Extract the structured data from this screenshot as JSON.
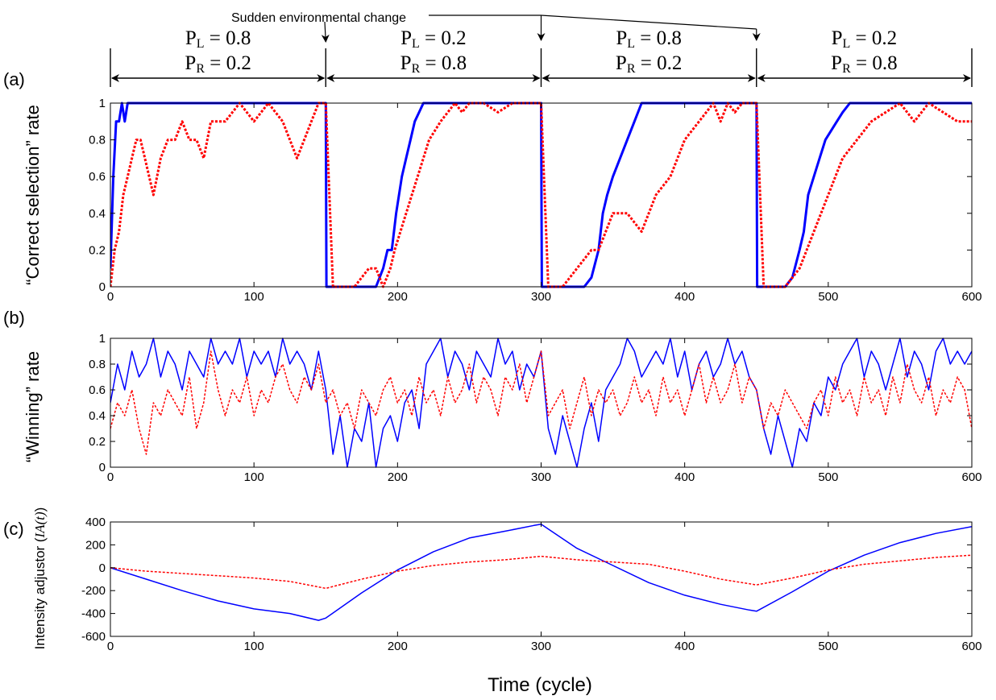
{
  "annotation": {
    "text": "Sudden environmental change"
  },
  "periods": [
    {
      "line1_main": "P",
      "line1_sub": "L",
      "line1_val": " = 0.8",
      "line2_main": "P",
      "line2_sub": "R",
      "line2_val": " = 0.2",
      "start": 0,
      "end": 150
    },
    {
      "line1_main": "P",
      "line1_sub": "L",
      "line1_val": " = 0.2",
      "line2_main": "P",
      "line2_sub": "R",
      "line2_val": " = 0.8",
      "start": 150,
      "end": 300
    },
    {
      "line1_main": "P",
      "line1_sub": "L",
      "line1_val": " = 0.8",
      "line2_main": "P",
      "line2_sub": "R",
      "line2_val": " = 0.2",
      "start": 300,
      "end": 450
    },
    {
      "line1_main": "P",
      "line1_sub": "L",
      "line1_val": " = 0.2",
      "line2_main": "P",
      "line2_sub": "R",
      "line2_val": " = 0.8",
      "start": 450,
      "end": 600
    }
  ],
  "colors": {
    "blue": "#0000ff",
    "red": "#ff0000",
    "axis": "#000000"
  },
  "chart_data": [
    {
      "type": "line",
      "panel_label": "(a)",
      "ylabel": "“Correct selection” rate",
      "xlim": [
        0,
        600
      ],
      "ylim": [
        0,
        1
      ],
      "xticks": [
        0,
        100,
        200,
        300,
        400,
        500,
        600
      ],
      "yticks": [
        0,
        0.2,
        0.4,
        0.6,
        0.8,
        1
      ],
      "ytick_labels": [
        "0",
        "0.2",
        "0.4",
        "0.6",
        "0.8",
        "1"
      ],
      "series": [
        {
          "color": "blue",
          "style": "solid",
          "width": 3,
          "x": [
            0,
            2,
            4,
            6,
            8,
            10,
            12,
            14,
            16,
            18,
            20,
            150,
            150.5,
            185,
            190,
            193,
            196,
            199,
            203,
            206,
            209,
            212,
            215,
            218,
            222,
            226,
            230,
            300,
            300.5,
            330,
            335,
            340,
            343,
            346,
            350,
            355,
            360,
            365,
            370,
            375,
            380,
            450,
            450.5,
            470,
            475,
            480,
            483,
            486,
            490,
            494,
            498,
            502,
            506,
            510,
            515,
            520,
            600
          ],
          "y": [
            0.1,
            0.6,
            0.9,
            0.9,
            1,
            0.9,
            1,
            1,
            1,
            1,
            1,
            1,
            0,
            0,
            0.1,
            0.2,
            0.2,
            0.4,
            0.6,
            0.7,
            0.8,
            0.9,
            0.95,
            1,
            1,
            1,
            1,
            1,
            0,
            0,
            0.05,
            0.2,
            0.4,
            0.5,
            0.6,
            0.7,
            0.8,
            0.9,
            1,
            1,
            1,
            1,
            0,
            0,
            0.05,
            0.2,
            0.3,
            0.5,
            0.6,
            0.7,
            0.8,
            0.85,
            0.9,
            0.95,
            1,
            1,
            1
          ]
        },
        {
          "color": "red",
          "style": "dotted",
          "width": 3,
          "x": [
            0,
            3,
            6,
            9,
            12,
            15,
            18,
            21,
            24,
            27,
            30,
            35,
            40,
            45,
            50,
            55,
            60,
            65,
            70,
            80,
            90,
            100,
            110,
            120,
            125,
            130,
            135,
            140,
            145,
            150,
            155,
            170,
            180,
            185,
            190,
            195,
            198,
            202,
            206,
            210,
            214,
            218,
            222,
            226,
            230,
            235,
            240,
            245,
            250,
            260,
            270,
            280,
            290,
            300,
            305,
            315,
            325,
            335,
            340,
            345,
            350,
            360,
            370,
            380,
            390,
            395,
            400,
            405,
            410,
            415,
            420,
            425,
            430,
            435,
            440,
            450,
            455,
            470,
            480,
            485,
            490,
            495,
            500,
            505,
            510,
            515,
            520,
            525,
            530,
            540,
            550,
            560,
            570,
            580,
            590,
            600
          ],
          "y": [
            0,
            0.2,
            0.3,
            0.5,
            0.6,
            0.7,
            0.8,
            0.8,
            0.7,
            0.6,
            0.5,
            0.7,
            0.8,
            0.8,
            0.9,
            0.8,
            0.8,
            0.7,
            0.9,
            0.9,
            1,
            0.9,
            1,
            0.9,
            0.8,
            0.7,
            0.8,
            0.9,
            1,
            1,
            0,
            0,
            0.1,
            0.1,
            0,
            0.1,
            0.2,
            0.3,
            0.4,
            0.5,
            0.6,
            0.7,
            0.8,
            0.85,
            0.9,
            0.95,
            1,
            0.95,
            1,
            1,
            0.95,
            1,
            1,
            1,
            0,
            0,
            0.1,
            0.2,
            0.2,
            0.3,
            0.4,
            0.4,
            0.3,
            0.5,
            0.6,
            0.7,
            0.8,
            0.85,
            0.9,
            0.95,
            1,
            0.9,
            1,
            0.95,
            1,
            1,
            0,
            0,
            0.1,
            0.2,
            0.3,
            0.4,
            0.5,
            0.6,
            0.7,
            0.75,
            0.8,
            0.85,
            0.9,
            0.95,
            1,
            0.9,
            1,
            0.95,
            0.9,
            0.9
          ]
        }
      ]
    },
    {
      "type": "line",
      "panel_label": "(b)",
      "ylabel": "“Winning” rate",
      "xlim": [
        0,
        600
      ],
      "ylim": [
        0,
        1
      ],
      "xticks": [
        0,
        100,
        200,
        300,
        400,
        500,
        600
      ],
      "yticks": [
        0,
        0.2,
        0.4,
        0.6,
        0.8,
        1
      ],
      "ytick_labels": [
        "0",
        "0.2",
        "0.4",
        "0.6",
        "0.8",
        "1"
      ],
      "series": [
        {
          "color": "blue",
          "style": "solid",
          "width": 1.5,
          "x": [
            0,
            5,
            10,
            15,
            20,
            25,
            30,
            35,
            40,
            45,
            50,
            55,
            60,
            65,
            70,
            75,
            80,
            85,
            90,
            95,
            100,
            105,
            110,
            115,
            120,
            125,
            130,
            135,
            140,
            145,
            150,
            155,
            160,
            165,
            170,
            175,
            180,
            185,
            190,
            195,
            200,
            205,
            210,
            215,
            220,
            225,
            230,
            235,
            240,
            245,
            250,
            255,
            260,
            265,
            270,
            275,
            280,
            285,
            290,
            295,
            300,
            305,
            310,
            315,
            320,
            325,
            330,
            335,
            340,
            345,
            350,
            355,
            360,
            365,
            370,
            375,
            380,
            385,
            390,
            395,
            400,
            405,
            410,
            415,
            420,
            425,
            430,
            435,
            440,
            445,
            450,
            455,
            460,
            465,
            470,
            475,
            480,
            485,
            490,
            495,
            500,
            505,
            510,
            515,
            520,
            525,
            530,
            535,
            540,
            545,
            550,
            555,
            560,
            565,
            570,
            575,
            580,
            585,
            590,
            595,
            600
          ],
          "y": [
            0.5,
            0.8,
            0.6,
            0.9,
            0.7,
            0.8,
            1,
            0.7,
            0.9,
            0.8,
            0.6,
            0.9,
            0.8,
            0.7,
            1,
            0.8,
            0.9,
            0.8,
            1,
            0.7,
            0.9,
            0.8,
            0.9,
            0.7,
            1,
            0.8,
            0.9,
            0.8,
            0.6,
            0.9,
            0.6,
            0.1,
            0.4,
            0,
            0.3,
            0.2,
            0.5,
            0,
            0.3,
            0.4,
            0.2,
            0.5,
            0.6,
            0.3,
            0.8,
            0.9,
            1,
            0.7,
            0.9,
            0.8,
            0.6,
            0.9,
            0.8,
            0.7,
            1,
            0.8,
            0.9,
            0.6,
            0.8,
            0.7,
            0.9,
            0.3,
            0.1,
            0.4,
            0.2,
            0,
            0.3,
            0.5,
            0.2,
            0.6,
            0.7,
            0.8,
            1,
            0.9,
            0.7,
            0.8,
            0.9,
            0.8,
            1,
            0.7,
            0.9,
            0.6,
            0.8,
            0.9,
            0.7,
            0.8,
            1,
            0.8,
            0.9,
            0.7,
            0.6,
            0.3,
            0.1,
            0.4,
            0.2,
            0,
            0.3,
            0.2,
            0.5,
            0.4,
            0.7,
            0.6,
            0.8,
            0.9,
            1,
            0.7,
            0.9,
            0.8,
            0.6,
            0.8,
            1,
            0.7,
            0.9,
            0.8,
            0.6,
            0.9,
            1,
            0.8,
            0.9,
            0.8,
            0.9
          ]
        },
        {
          "color": "red",
          "style": "dotted",
          "width": 1.5,
          "x": [
            0,
            5,
            10,
            15,
            20,
            25,
            30,
            35,
            40,
            45,
            50,
            55,
            60,
            65,
            70,
            75,
            80,
            85,
            90,
            95,
            100,
            105,
            110,
            115,
            120,
            125,
            130,
            135,
            140,
            145,
            150,
            155,
            160,
            165,
            170,
            175,
            180,
            185,
            190,
            195,
            200,
            205,
            210,
            215,
            220,
            225,
            230,
            235,
            240,
            245,
            250,
            255,
            260,
            265,
            270,
            275,
            280,
            285,
            290,
            295,
            300,
            305,
            310,
            315,
            320,
            325,
            330,
            335,
            340,
            345,
            350,
            355,
            360,
            365,
            370,
            375,
            380,
            385,
            390,
            395,
            400,
            405,
            410,
            415,
            420,
            425,
            430,
            435,
            440,
            445,
            450,
            455,
            460,
            465,
            470,
            475,
            480,
            485,
            490,
            495,
            500,
            505,
            510,
            515,
            520,
            525,
            530,
            535,
            540,
            545,
            550,
            555,
            560,
            565,
            570,
            575,
            580,
            585,
            590,
            595,
            600
          ],
          "y": [
            0.3,
            0.5,
            0.4,
            0.6,
            0.3,
            0.1,
            0.5,
            0.4,
            0.6,
            0.5,
            0.4,
            0.7,
            0.3,
            0.5,
            0.9,
            0.6,
            0.4,
            0.6,
            0.5,
            0.7,
            0.4,
            0.6,
            0.5,
            0.7,
            0.8,
            0.6,
            0.5,
            0.7,
            0.6,
            0.8,
            0.5,
            0.6,
            0.4,
            0.5,
            0.3,
            0.6,
            0.5,
            0.4,
            0.6,
            0.7,
            0.5,
            0.6,
            0.4,
            0.7,
            0.5,
            0.6,
            0.4,
            0.7,
            0.5,
            0.6,
            0.8,
            0.5,
            0.7,
            0.6,
            0.4,
            0.7,
            0.6,
            0.8,
            0.5,
            0.7,
            0.9,
            0.4,
            0.5,
            0.6,
            0.3,
            0.5,
            0.7,
            0.4,
            0.6,
            0.5,
            0.6,
            0.4,
            0.5,
            0.7,
            0.5,
            0.6,
            0.4,
            0.7,
            0.5,
            0.6,
            0.4,
            0.6,
            0.8,
            0.5,
            0.7,
            0.5,
            0.6,
            0.8,
            0.5,
            0.7,
            0.6,
            0.3,
            0.5,
            0.4,
            0.6,
            0.5,
            0.4,
            0.3,
            0.5,
            0.6,
            0.4,
            0.7,
            0.5,
            0.6,
            0.4,
            0.7,
            0.5,
            0.6,
            0.4,
            0.7,
            0.5,
            0.8,
            0.6,
            0.5,
            0.7,
            0.4,
            0.6,
            0.5,
            0.7,
            0.6,
            0.3
          ]
        }
      ]
    },
    {
      "type": "line",
      "panel_label": "(c)",
      "ylabel_main": "Intensity adjustor (",
      "ylabel_math": "IA(t)",
      "ylabel_end": ")",
      "xlabel": "Time (cycle)",
      "xlim": [
        0,
        600
      ],
      "ylim": [
        -600,
        400
      ],
      "xticks": [
        0,
        100,
        200,
        300,
        400,
        500,
        600
      ],
      "yticks": [
        -600,
        -400,
        -200,
        0,
        200,
        400
      ],
      "ytick_labels": [
        "-600",
        "-400",
        "-200",
        "0",
        "200",
        "400"
      ],
      "series": [
        {
          "color": "blue",
          "style": "solid",
          "width": 1.5,
          "x": [
            0,
            25,
            50,
            75,
            100,
            125,
            145,
            150,
            175,
            200,
            225,
            250,
            275,
            295,
            300,
            325,
            350,
            375,
            400,
            425,
            445,
            450,
            475,
            500,
            525,
            550,
            575,
            600
          ],
          "y": [
            0,
            -100,
            -200,
            -290,
            -360,
            -400,
            -460,
            -440,
            -220,
            -20,
            140,
            260,
            320,
            370,
            380,
            170,
            20,
            -130,
            -240,
            -320,
            -370,
            -380,
            -210,
            -30,
            110,
            220,
            300,
            360
          ]
        },
        {
          "color": "red",
          "style": "dotted",
          "width": 1.5,
          "x": [
            0,
            25,
            50,
            75,
            100,
            125,
            150,
            175,
            200,
            225,
            250,
            275,
            300,
            325,
            350,
            375,
            400,
            425,
            450,
            475,
            500,
            525,
            550,
            575,
            600
          ],
          "y": [
            0,
            -30,
            -50,
            -70,
            -90,
            -120,
            -180,
            -100,
            -30,
            20,
            50,
            70,
            100,
            70,
            50,
            30,
            -30,
            -100,
            -150,
            -90,
            -20,
            30,
            60,
            90,
            110
          ]
        }
      ]
    }
  ]
}
